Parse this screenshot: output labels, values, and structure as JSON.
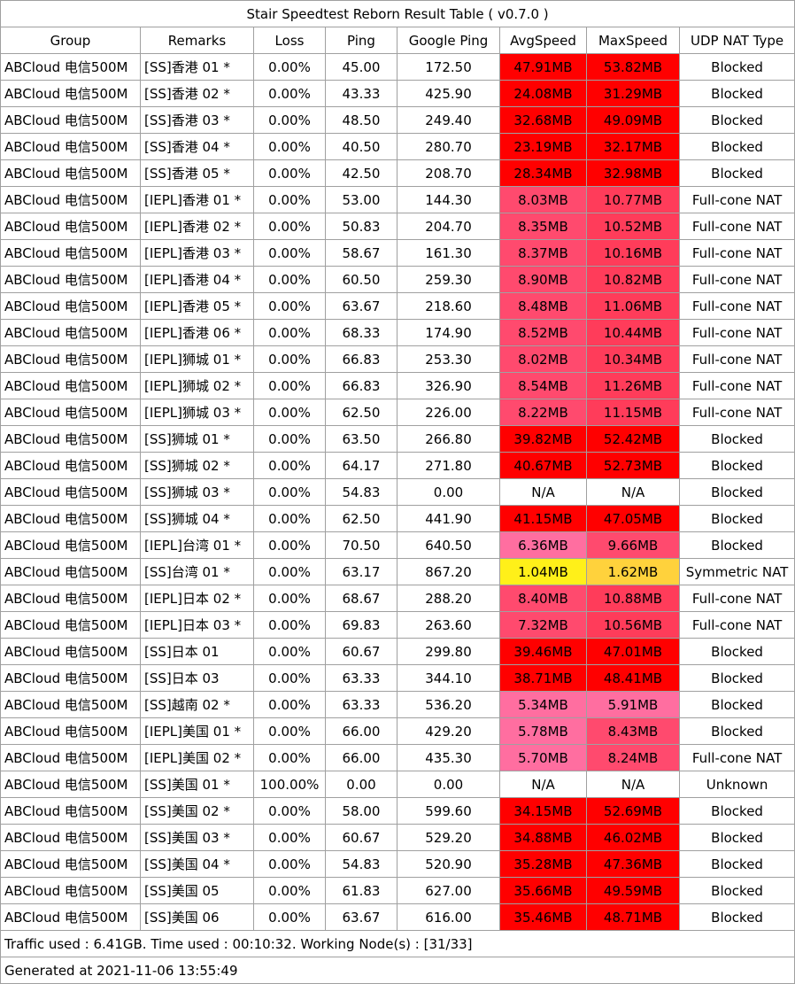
{
  "title": "Stair Speedtest Reborn Result Table ( v0.7.0 )",
  "headers": [
    "Group",
    "Remarks",
    "Loss",
    "Ping",
    "Google Ping",
    "AvgSpeed",
    "MaxSpeed",
    "UDP NAT Type"
  ],
  "rows": [
    {
      "group": "ABCloud 电信500M",
      "remarks": "[SS]香港 01 *",
      "loss": "0.00%",
      "ping": "45.00",
      "gping": "172.50",
      "avg": "47.91MB",
      "max": "53.82MB",
      "nat": "Blocked",
      "avg_color": "#ff0000",
      "max_color": "#ff0000"
    },
    {
      "group": "ABCloud 电信500M",
      "remarks": "[SS]香港 02 *",
      "loss": "0.00%",
      "ping": "43.33",
      "gping": "425.90",
      "avg": "24.08MB",
      "max": "31.29MB",
      "nat": "Blocked",
      "avg_color": "#ff0000",
      "max_color": "#ff0000"
    },
    {
      "group": "ABCloud 电信500M",
      "remarks": "[SS]香港 03 *",
      "loss": "0.00%",
      "ping": "48.50",
      "gping": "249.40",
      "avg": "32.68MB",
      "max": "49.09MB",
      "nat": "Blocked",
      "avg_color": "#ff0000",
      "max_color": "#ff0000"
    },
    {
      "group": "ABCloud 电信500M",
      "remarks": "[SS]香港 04 *",
      "loss": "0.00%",
      "ping": "40.50",
      "gping": "280.70",
      "avg": "23.19MB",
      "max": "32.17MB",
      "nat": "Blocked",
      "avg_color": "#ff0000",
      "max_color": "#ff0000"
    },
    {
      "group": "ABCloud 电信500M",
      "remarks": "[SS]香港 05 *",
      "loss": "0.00%",
      "ping": "42.50",
      "gping": "208.70",
      "avg": "28.34MB",
      "max": "32.98MB",
      "nat": "Blocked",
      "avg_color": "#ff0000",
      "max_color": "#ff0000"
    },
    {
      "group": "ABCloud 电信500M",
      "remarks": "[IEPL]香港 01 *",
      "loss": "0.00%",
      "ping": "53.00",
      "gping": "144.30",
      "avg": "8.03MB",
      "max": "10.77MB",
      "nat": "Full-cone NAT",
      "avg_color": "#ff4a6e",
      "max_color": "#ff3c5a"
    },
    {
      "group": "ABCloud 电信500M",
      "remarks": "[IEPL]香港 02 *",
      "loss": "0.00%",
      "ping": "50.83",
      "gping": "204.70",
      "avg": "8.35MB",
      "max": "10.52MB",
      "nat": "Full-cone NAT",
      "avg_color": "#ff4a6e",
      "max_color": "#ff3c5a"
    },
    {
      "group": "ABCloud 电信500M",
      "remarks": "[IEPL]香港 03 *",
      "loss": "0.00%",
      "ping": "58.67",
      "gping": "161.30",
      "avg": "8.37MB",
      "max": "10.16MB",
      "nat": "Full-cone NAT",
      "avg_color": "#ff4a6e",
      "max_color": "#ff3c5a"
    },
    {
      "group": "ABCloud 电信500M",
      "remarks": "[IEPL]香港 04 *",
      "loss": "0.00%",
      "ping": "60.50",
      "gping": "259.30",
      "avg": "8.90MB",
      "max": "10.82MB",
      "nat": "Full-cone NAT",
      "avg_color": "#ff4a6e",
      "max_color": "#ff3c5a"
    },
    {
      "group": "ABCloud 电信500M",
      "remarks": "[IEPL]香港 05 *",
      "loss": "0.00%",
      "ping": "63.67",
      "gping": "218.60",
      "avg": "8.48MB",
      "max": "11.06MB",
      "nat": "Full-cone NAT",
      "avg_color": "#ff4a6e",
      "max_color": "#ff3c5a"
    },
    {
      "group": "ABCloud 电信500M",
      "remarks": "[IEPL]香港 06 *",
      "loss": "0.00%",
      "ping": "68.33",
      "gping": "174.90",
      "avg": "8.52MB",
      "max": "10.44MB",
      "nat": "Full-cone NAT",
      "avg_color": "#ff4a6e",
      "max_color": "#ff3c5a"
    },
    {
      "group": "ABCloud 电信500M",
      "remarks": "[IEPL]狮城 01 *",
      "loss": "0.00%",
      "ping": "66.83",
      "gping": "253.30",
      "avg": "8.02MB",
      "max": "10.34MB",
      "nat": "Full-cone NAT",
      "avg_color": "#ff4a6e",
      "max_color": "#ff3c5a"
    },
    {
      "group": "ABCloud 电信500M",
      "remarks": "[IEPL]狮城 02 *",
      "loss": "0.00%",
      "ping": "66.83",
      "gping": "326.90",
      "avg": "8.54MB",
      "max": "11.26MB",
      "nat": "Full-cone NAT",
      "avg_color": "#ff4a6e",
      "max_color": "#ff3c5a"
    },
    {
      "group": "ABCloud 电信500M",
      "remarks": "[IEPL]狮城 03 *",
      "loss": "0.00%",
      "ping": "62.50",
      "gping": "226.00",
      "avg": "8.22MB",
      "max": "11.15MB",
      "nat": "Full-cone NAT",
      "avg_color": "#ff4a6e",
      "max_color": "#ff3c5a"
    },
    {
      "group": "ABCloud 电信500M",
      "remarks": "[SS]狮城 01 *",
      "loss": "0.00%",
      "ping": "63.50",
      "gping": "266.80",
      "avg": "39.82MB",
      "max": "52.42MB",
      "nat": "Blocked",
      "avg_color": "#ff0000",
      "max_color": "#ff0000"
    },
    {
      "group": "ABCloud 电信500M",
      "remarks": "[SS]狮城 02 *",
      "loss": "0.00%",
      "ping": "64.17",
      "gping": "271.80",
      "avg": "40.67MB",
      "max": "52.73MB",
      "nat": "Blocked",
      "avg_color": "#ff0000",
      "max_color": "#ff0000"
    },
    {
      "group": "ABCloud 电信500M",
      "remarks": "[SS]狮城 03 *",
      "loss": "0.00%",
      "ping": "54.83",
      "gping": "0.00",
      "avg": "N/A",
      "max": "N/A",
      "nat": "Blocked",
      "avg_color": "#ffffff",
      "max_color": "#ffffff"
    },
    {
      "group": "ABCloud 电信500M",
      "remarks": "[SS]狮城 04 *",
      "loss": "0.00%",
      "ping": "62.50",
      "gping": "441.90",
      "avg": "41.15MB",
      "max": "47.05MB",
      "nat": "Blocked",
      "avg_color": "#ff0000",
      "max_color": "#ff0000"
    },
    {
      "group": "ABCloud 电信500M",
      "remarks": "[IEPL]台湾 01 *",
      "loss": "0.00%",
      "ping": "70.50",
      "gping": "640.50",
      "avg": "6.36MB",
      "max": "9.66MB",
      "nat": "Blocked",
      "avg_color": "#ff6ea0",
      "max_color": "#ff4a6e"
    },
    {
      "group": "ABCloud 电信500M",
      "remarks": "[SS]台湾 01 *",
      "loss": "0.00%",
      "ping": "63.17",
      "gping": "867.20",
      "avg": "1.04MB",
      "max": "1.62MB",
      "nat": "Symmetric NAT",
      "avg_color": "#fff019",
      "max_color": "#ffd23c"
    },
    {
      "group": "ABCloud 电信500M",
      "remarks": "[IEPL]日本 02 *",
      "loss": "0.00%",
      "ping": "68.67",
      "gping": "288.20",
      "avg": "8.40MB",
      "max": "10.88MB",
      "nat": "Full-cone NAT",
      "avg_color": "#ff4a6e",
      "max_color": "#ff3c5a"
    },
    {
      "group": "ABCloud 电信500M",
      "remarks": "[IEPL]日本 03 *",
      "loss": "0.00%",
      "ping": "69.83",
      "gping": "263.60",
      "avg": "7.32MB",
      "max": "10.56MB",
      "nat": "Full-cone NAT",
      "avg_color": "#ff4a6e",
      "max_color": "#ff3c5a"
    },
    {
      "group": "ABCloud 电信500M",
      "remarks": "[SS]日本 01",
      "loss": "0.00%",
      "ping": "60.67",
      "gping": "299.80",
      "avg": "39.46MB",
      "max": "47.01MB",
      "nat": "Blocked",
      "avg_color": "#ff0000",
      "max_color": "#ff0000"
    },
    {
      "group": "ABCloud 电信500M",
      "remarks": "[SS]日本 03",
      "loss": "0.00%",
      "ping": "63.33",
      "gping": "344.10",
      "avg": "38.71MB",
      "max": "48.41MB",
      "nat": "Blocked",
      "avg_color": "#ff0000",
      "max_color": "#ff0000"
    },
    {
      "group": "ABCloud 电信500M",
      "remarks": "[SS]越南 02 *",
      "loss": "0.00%",
      "ping": "63.33",
      "gping": "536.20",
      "avg": "5.34MB",
      "max": "5.91MB",
      "nat": "Blocked",
      "avg_color": "#ff6ea0",
      "max_color": "#ff6ea0"
    },
    {
      "group": "ABCloud 电信500M",
      "remarks": "[IEPL]美国 01 *",
      "loss": "0.00%",
      "ping": "66.00",
      "gping": "429.20",
      "avg": "5.78MB",
      "max": "8.43MB",
      "nat": "Blocked",
      "avg_color": "#ff6ea0",
      "max_color": "#ff4a6e"
    },
    {
      "group": "ABCloud 电信500M",
      "remarks": "[IEPL]美国 02 *",
      "loss": "0.00%",
      "ping": "66.00",
      "gping": "435.30",
      "avg": "5.70MB",
      "max": "8.24MB",
      "nat": "Full-cone NAT",
      "avg_color": "#ff6ea0",
      "max_color": "#ff4a6e"
    },
    {
      "group": "ABCloud 电信500M",
      "remarks": "[SS]美国 01 *",
      "loss": "100.00%",
      "ping": "0.00",
      "gping": "0.00",
      "avg": "N/A",
      "max": "N/A",
      "nat": "Unknown",
      "avg_color": "#ffffff",
      "max_color": "#ffffff"
    },
    {
      "group": "ABCloud 电信500M",
      "remarks": "[SS]美国 02 *",
      "loss": "0.00%",
      "ping": "58.00",
      "gping": "599.60",
      "avg": "34.15MB",
      "max": "52.69MB",
      "nat": "Blocked",
      "avg_color": "#ff0000",
      "max_color": "#ff0000"
    },
    {
      "group": "ABCloud 电信500M",
      "remarks": "[SS]美国 03 *",
      "loss": "0.00%",
      "ping": "60.67",
      "gping": "529.20",
      "avg": "34.88MB",
      "max": "46.02MB",
      "nat": "Blocked",
      "avg_color": "#ff0000",
      "max_color": "#ff0000"
    },
    {
      "group": "ABCloud 电信500M",
      "remarks": "[SS]美国 04 *",
      "loss": "0.00%",
      "ping": "54.83",
      "gping": "520.90",
      "avg": "35.28MB",
      "max": "47.36MB",
      "nat": "Blocked",
      "avg_color": "#ff0000",
      "max_color": "#ff0000"
    },
    {
      "group": "ABCloud 电信500M",
      "remarks": "[SS]美国 05",
      "loss": "0.00%",
      "ping": "61.83",
      "gping": "627.00",
      "avg": "35.66MB",
      "max": "49.59MB",
      "nat": "Blocked",
      "avg_color": "#ff0000",
      "max_color": "#ff0000"
    },
    {
      "group": "ABCloud 电信500M",
      "remarks": "[SS]美国 06",
      "loss": "0.00%",
      "ping": "63.67",
      "gping": "616.00",
      "avg": "35.46MB",
      "max": "48.71MB",
      "nat": "Blocked",
      "avg_color": "#ff0000",
      "max_color": "#ff0000"
    }
  ],
  "footer": {
    "traffic": "Traffic used : 6.41GB. Time used : 00:10:32. Working Node(s) : [31/33]",
    "generated": "Generated at 2021-11-06 13:55:49"
  }
}
